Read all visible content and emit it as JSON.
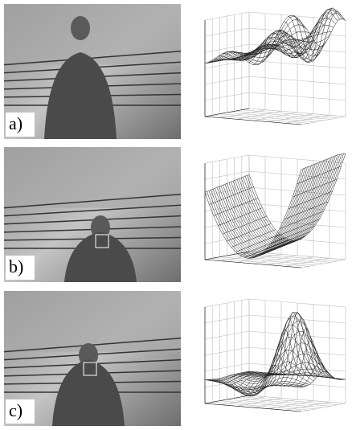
{
  "panels": [
    {
      "label": "a)"
    },
    {
      "label": "b)"
    },
    {
      "label": "c)"
    }
  ]
}
